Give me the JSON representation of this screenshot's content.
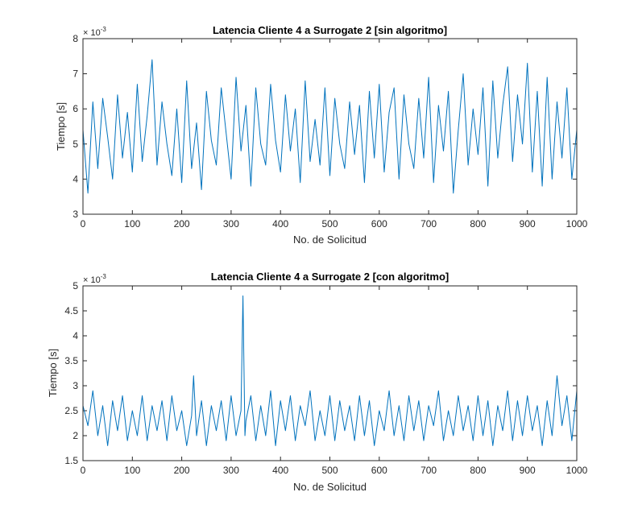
{
  "chart_data": [
    {
      "type": "line",
      "title": "Latencia Cliente 4 a Surrogate 2 [sin algoritmo]",
      "xlabel": "No. de Solicitud",
      "ylabel": "Tiempo [s]",
      "xlim": [
        0,
        1000
      ],
      "ylim": [
        3,
        8
      ],
      "xticks": [
        "0",
        "100",
        "200",
        "300",
        "400",
        "500",
        "600",
        "700",
        "800",
        "900",
        "1000"
      ],
      "yticks": [
        "3",
        "4",
        "5",
        "6",
        "7",
        "8"
      ],
      "exponent": {
        "base": "× 10",
        "power": "-3"
      },
      "grid": false,
      "color": "#0072BD",
      "series": [
        {
          "x": [
            0,
            10,
            20,
            30,
            40,
            50,
            60,
            70,
            80,
            90,
            100,
            110,
            120,
            130,
            140,
            150,
            160,
            170,
            180,
            190,
            200,
            210,
            220,
            230,
            240,
            250,
            260,
            270,
            280,
            290,
            300,
            310,
            320,
            330,
            340,
            350,
            360,
            370,
            380,
            390,
            400,
            410,
            420,
            430,
            440,
            450,
            460,
            470,
            480,
            490,
            500,
            510,
            520,
            530,
            540,
            550,
            560,
            570,
            580,
            590,
            600,
            610,
            620,
            630,
            640,
            650,
            660,
            670,
            680,
            690,
            700,
            710,
            720,
            730,
            740,
            750,
            760,
            770,
            780,
            790,
            800,
            810,
            820,
            830,
            840,
            850,
            860,
            870,
            880,
            890,
            900,
            910,
            920,
            930,
            940,
            950,
            960,
            970,
            980,
            990,
            1000
          ],
          "y": [
            5.4,
            3.6,
            6.2,
            4.3,
            6.3,
            5.2,
            4.0,
            6.4,
            4.6,
            5.9,
            4.2,
            6.7,
            4.5,
            5.8,
            7.4,
            4.4,
            6.2,
            5.0,
            4.1,
            6.0,
            3.9,
            6.8,
            4.3,
            5.6,
            3.7,
            6.5,
            5.1,
            4.4,
            6.6,
            5.3,
            4.0,
            6.9,
            4.8,
            6.1,
            3.8,
            6.6,
            5.0,
            4.4,
            6.7,
            5.1,
            4.2,
            6.4,
            4.8,
            6.0,
            3.9,
            6.8,
            4.5,
            5.7,
            4.4,
            6.6,
            4.1,
            6.3,
            5.0,
            4.3,
            6.2,
            4.7,
            6.1,
            3.9,
            6.5,
            4.6,
            6.7,
            4.2,
            5.9,
            6.6,
            4.0,
            6.4,
            5.0,
            4.3,
            6.3,
            4.6,
            6.9,
            3.9,
            6.1,
            4.8,
            6.5,
            3.6,
            5.4,
            7.0,
            4.4,
            6.0,
            4.7,
            6.6,
            3.8,
            6.8,
            4.6,
            6.1,
            7.2,
            4.5,
            6.4,
            5.0,
            7.3,
            4.2,
            6.5,
            3.8,
            6.9,
            4.0,
            6.2,
            4.6,
            6.6,
            4.0,
            5.4
          ]
        }
      ]
    },
    {
      "type": "line",
      "title": "Latencia Cliente 4 a Surrogate 2 [con algoritmo]",
      "xlabel": "No. de Solicitud",
      "ylabel": "Tiempo [s]",
      "xlim": [
        0,
        1000
      ],
      "ylim": [
        1.5,
        5
      ],
      "xticks": [
        "0",
        "100",
        "200",
        "300",
        "400",
        "500",
        "600",
        "700",
        "800",
        "900",
        "1000"
      ],
      "yticks": [
        "1.5",
        "2",
        "2.5",
        "3",
        "3.5",
        "4",
        "4.5",
        "5"
      ],
      "exponent": {
        "base": "× 10",
        "power": "-3"
      },
      "grid": false,
      "color": "#0072BD",
      "series": [
        {
          "x": [
            0,
            10,
            20,
            30,
            40,
            50,
            60,
            70,
            80,
            90,
            100,
            110,
            120,
            130,
            140,
            150,
            160,
            170,
            180,
            190,
            200,
            210,
            220,
            224,
            230,
            240,
            250,
            260,
            270,
            280,
            290,
            300,
            310,
            320,
            324,
            328,
            330,
            340,
            350,
            360,
            370,
            380,
            390,
            400,
            410,
            420,
            430,
            440,
            450,
            460,
            470,
            480,
            490,
            500,
            510,
            520,
            530,
            540,
            550,
            560,
            570,
            580,
            590,
            600,
            610,
            620,
            630,
            640,
            650,
            660,
            670,
            680,
            690,
            700,
            710,
            720,
            730,
            740,
            750,
            760,
            770,
            780,
            790,
            800,
            810,
            820,
            830,
            840,
            850,
            860,
            870,
            880,
            890,
            900,
            910,
            920,
            930,
            940,
            950,
            960,
            970,
            980,
            990,
            1000
          ],
          "y": [
            2.6,
            2.2,
            2.9,
            2.0,
            2.6,
            1.8,
            2.7,
            2.1,
            2.8,
            1.9,
            2.5,
            2.0,
            2.8,
            1.9,
            2.6,
            2.1,
            2.7,
            1.9,
            2.8,
            2.1,
            2.5,
            1.8,
            2.4,
            3.2,
            2.0,
            2.7,
            1.8,
            2.6,
            2.1,
            2.7,
            1.9,
            2.8,
            2.0,
            2.5,
            4.8,
            2.0,
            2.3,
            2.8,
            1.9,
            2.6,
            2.0,
            2.9,
            1.8,
            2.7,
            2.1,
            2.8,
            1.9,
            2.6,
            2.2,
            2.9,
            1.9,
            2.5,
            2.0,
            2.8,
            1.9,
            2.7,
            2.1,
            2.6,
            1.9,
            2.8,
            2.0,
            2.7,
            1.8,
            2.5,
            2.1,
            2.9,
            2.0,
            2.6,
            1.9,
            2.8,
            2.1,
            2.7,
            1.9,
            2.6,
            2.2,
            2.9,
            1.9,
            2.5,
            2.0,
            2.8,
            2.1,
            2.6,
            1.9,
            2.8,
            2.0,
            2.7,
            1.8,
            2.6,
            2.1,
            2.9,
            1.9,
            2.7,
            2.0,
            2.8,
            2.1,
            2.6,
            1.8,
            2.7,
            2.0,
            3.2,
            2.2,
            2.8,
            1.9,
            2.9
          ]
        }
      ]
    }
  ]
}
